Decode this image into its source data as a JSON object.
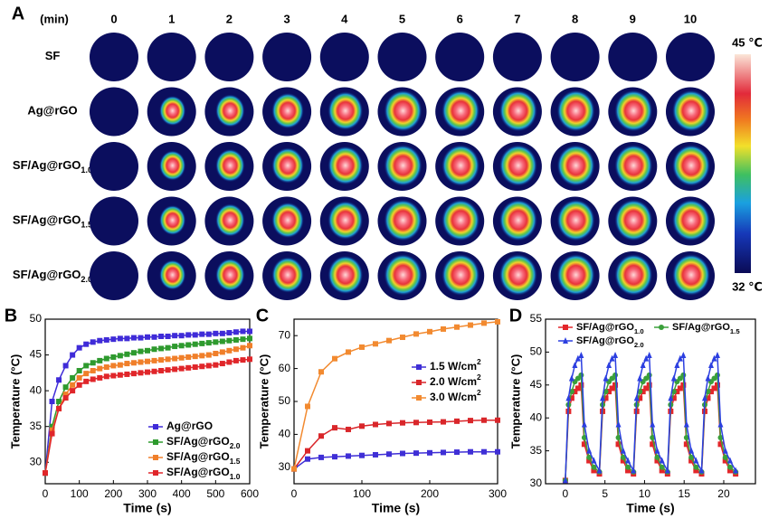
{
  "panel_a": {
    "panel": "A",
    "time_label": "(min)",
    "columns": [
      0,
      1,
      2,
      3,
      4,
      5,
      6,
      7,
      8,
      9,
      10
    ],
    "rows": [
      {
        "text": "SF"
      },
      {
        "text": "Ag@rGO"
      },
      {
        "text": "SF/Ag@rGO",
        "sub": "1.0"
      },
      {
        "text": "SF/Ag@rGO",
        "sub": "1.5"
      },
      {
        "text": "SF/Ag@rGO",
        "sub": "2.0"
      }
    ],
    "colorbar": {
      "max_label": "45 ℃",
      "min_label": "32 ℃"
    }
  },
  "chart_data": [
    {
      "type": "line",
      "panel": "B",
      "x_label": "Time (s)",
      "y_label": "Temperature (°C)",
      "xlim": [
        0,
        600
      ],
      "xticks": [
        0,
        100,
        200,
        300,
        400,
        500,
        600
      ],
      "ylim": [
        27,
        50
      ],
      "yticks": [
        30,
        35,
        40,
        45,
        50
      ],
      "legend": "lower right",
      "x": [
        0,
        20,
        40,
        60,
        80,
        100,
        120,
        140,
        160,
        180,
        200,
        220,
        240,
        260,
        280,
        300,
        320,
        340,
        360,
        380,
        400,
        420,
        440,
        460,
        480,
        500,
        520,
        540,
        560,
        580,
        600
      ],
      "series": [
        {
          "name": "Ag@rGO",
          "color": "#3f2bd8",
          "marker": "square",
          "values": [
            28.5,
            38.5,
            41.5,
            43.5,
            45,
            46,
            46.5,
            46.8,
            47,
            47.1,
            47.2,
            47.3,
            47.3,
            47.4,
            47.4,
            47.5,
            47.5,
            47.6,
            47.6,
            47.7,
            47.7,
            47.8,
            47.8,
            47.9,
            47.9,
            48,
            48,
            48.1,
            48.2,
            48.3,
            48.3
          ]
        },
        {
          "name": "SF/Ag@rGO",
          "name_sub": "2.0",
          "color": "#2e9a2e",
          "marker": "square",
          "values": [
            28.5,
            35,
            38.5,
            40.5,
            41.8,
            42.8,
            43.5,
            43.9,
            44.2,
            44.5,
            44.7,
            44.9,
            45.1,
            45.3,
            45.5,
            45.6,
            45.8,
            45.9,
            46,
            46.2,
            46.3,
            46.4,
            46.5,
            46.6,
            46.7,
            46.8,
            46.9,
            47,
            47.1,
            47.2,
            47.3
          ]
        },
        {
          "name": "SF/Ag@rGO",
          "name_sub": "1.5",
          "color": "#f07f2a",
          "marker": "square",
          "values": [
            28.5,
            34.5,
            37.5,
            39.5,
            40.8,
            41.8,
            42.4,
            42.8,
            43.1,
            43.3,
            43.5,
            43.6,
            43.8,
            43.9,
            44,
            44.1,
            44.2,
            44.3,
            44.4,
            44.5,
            44.6,
            44.7,
            44.8,
            44.9,
            45,
            45.2,
            45.4,
            45.6,
            45.8,
            46,
            46.3
          ]
        },
        {
          "name": "SF/Ag@rGO",
          "name_sub": "1.0",
          "color": "#e0262a",
          "marker": "square",
          "values": [
            28.5,
            34,
            37.5,
            39,
            40,
            40.8,
            41.3,
            41.6,
            41.8,
            42,
            42.1,
            42.2,
            42.3,
            42.4,
            42.5,
            42.6,
            42.7,
            42.8,
            42.9,
            43,
            43.1,
            43.2,
            43.3,
            43.4,
            43.5,
            43.6,
            43.8,
            44,
            44.2,
            44.3,
            44.4
          ]
        }
      ]
    },
    {
      "type": "line",
      "panel": "C",
      "x_label": "Time (s)",
      "y_label": "Temperature (°C)",
      "xlim": [
        0,
        300
      ],
      "xticks": [
        0,
        100,
        200,
        300
      ],
      "ylim": [
        25,
        75
      ],
      "yticks": [
        30,
        40,
        50,
        60,
        70
      ],
      "legend": "center right",
      "x": [
        0,
        20,
        40,
        60,
        80,
        100,
        120,
        140,
        160,
        180,
        200,
        220,
        240,
        260,
        280,
        300
      ],
      "series": [
        {
          "name": "1.5 W/cm",
          "name_sup": "2",
          "color": "#3f2fd6",
          "marker": "square",
          "values": [
            29.5,
            32.5,
            33,
            33.2,
            33.4,
            33.6,
            33.8,
            34,
            34.2,
            34.3,
            34.4,
            34.5,
            34.6,
            34.7,
            34.7,
            34.7
          ]
        },
        {
          "name": "2.0 W/cm",
          "name_sup": "2",
          "color": "#d9262a",
          "marker": "square",
          "values": [
            29.5,
            35,
            39.5,
            42,
            41.5,
            42.5,
            43,
            43.3,
            43.5,
            43.6,
            43.7,
            43.8,
            44,
            44.2,
            44.3,
            44.3
          ]
        },
        {
          "name": "3.0 W/cm",
          "name_sup": "2",
          "color": "#f28a30",
          "marker": "square",
          "values": [
            29.5,
            48.5,
            59,
            63,
            65,
            66.5,
            67.5,
            68.5,
            69.5,
            70.5,
            71.2,
            72,
            72.6,
            73.2,
            73.8,
            74.2
          ]
        }
      ]
    },
    {
      "type": "line",
      "panel": "D",
      "x_label": "Time (s)",
      "y_label": "Temperature (°C)",
      "xlim": [
        -2.5,
        24
      ],
      "xticks": [
        0,
        5,
        10,
        15,
        20
      ],
      "ylim": [
        30,
        55
      ],
      "yticks": [
        30,
        35,
        40,
        45,
        50,
        55
      ],
      "legend": "upper left",
      "x": [
        0,
        0.4,
        0.8,
        1.2,
        1.6,
        2.0,
        2.4,
        3.0,
        3.6,
        4.3,
        4.7,
        5.1,
        5.5,
        5.9,
        6.3,
        6.7,
        7.3,
        7.9,
        8.6,
        9.0,
        9.4,
        9.8,
        10.2,
        10.6,
        11.0,
        11.6,
        12.2,
        12.9,
        13.3,
        13.7,
        14.1,
        14.5,
        14.9,
        15.3,
        15.9,
        16.5,
        17.2,
        17.6,
        18.0,
        18.4,
        18.8,
        19.2,
        19.6,
        20.2,
        20.8,
        21.5
      ],
      "series": [
        {
          "name": "SF/Ag@rGO",
          "name_sub": "1.0",
          "color": "#e3262a",
          "marker": "square",
          "values": [
            30.5,
            41,
            43,
            44,
            44.5,
            45,
            36,
            33.5,
            32,
            31.5,
            41,
            43,
            44,
            44.5,
            45,
            36,
            33.5,
            32,
            31.5,
            41,
            43,
            44,
            44.5,
            45,
            36,
            33.5,
            32,
            31.5,
            41,
            43,
            44,
            44.5,
            45,
            36,
            33.5,
            32,
            31.5,
            41,
            43,
            44,
            44.5,
            45,
            36,
            33.5,
            32,
            31.5
          ]
        },
        {
          "name": "SF/Ag@rGO",
          "name_sub": "1.5",
          "color": "#3aa03a",
          "marker": "circle",
          "values": [
            30.5,
            42,
            44,
            45.5,
            46,
            46.5,
            37,
            34,
            32.5,
            31.8,
            42,
            44,
            45.5,
            46,
            46.5,
            37,
            34,
            32.5,
            31.8,
            42,
            44,
            45.5,
            46,
            46.5,
            37,
            34,
            32.5,
            31.8,
            42,
            44,
            45.5,
            46,
            46.5,
            37,
            34,
            32.5,
            31.8,
            42,
            44,
            45.5,
            46,
            46.5,
            37,
            34,
            32.5,
            31.8
          ]
        },
        {
          "name": "SF/Ag@rGO",
          "name_sub": "2.0",
          "color": "#2c3fe0",
          "marker": "triangle",
          "values": [
            30.5,
            43,
            46,
            48,
            49,
            49.5,
            39,
            35,
            33.5,
            32,
            43,
            46,
            48,
            49,
            49.5,
            39,
            35,
            33.5,
            32,
            43,
            46,
            48,
            49,
            49.5,
            39,
            35,
            33.5,
            32,
            43,
            46,
            48,
            49,
            49.5,
            39,
            35,
            33.5,
            32,
            43,
            46,
            48,
            49,
            49.5,
            39,
            35,
            33.5,
            32
          ]
        }
      ]
    }
  ]
}
